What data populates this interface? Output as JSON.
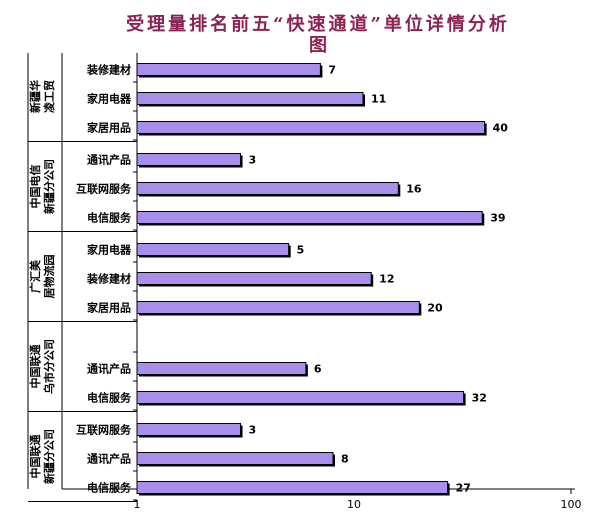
{
  "chart_data": {
    "type": "bar",
    "orientation": "horizontal",
    "title_line1": "受理量排名前五“快速通道”单位详情分析",
    "title_line2": "图",
    "x_scale": "log",
    "xlim": [
      1,
      100
    ],
    "x_ticks": [
      "1",
      "10",
      "100"
    ],
    "grid": false,
    "legend": "none",
    "bar_color": "#A98FEB",
    "groups": [
      {
        "name_lines": [
          "新疆华",
          "凌工贸"
        ],
        "items": [
          {
            "label": "装修建材",
            "value": 7
          },
          {
            "label": "家用电器",
            "value": 11
          },
          {
            "label": "家居用品",
            "value": 40
          }
        ]
      },
      {
        "name_lines": [
          "中国电信",
          "新疆分公司"
        ],
        "items": [
          {
            "label": "通讯产品",
            "value": 3
          },
          {
            "label": "互联网服务",
            "value": 16
          },
          {
            "label": "电信服务",
            "value": 39
          }
        ]
      },
      {
        "name_lines": [
          "广汇美",
          "居物流园"
        ],
        "items": [
          {
            "label": "家用电器",
            "value": 5
          },
          {
            "label": "装修建材",
            "value": 12
          },
          {
            "label": "家居用品",
            "value": 20
          }
        ]
      },
      {
        "name_lines": [
          "中国联通",
          "乌市分公司"
        ],
        "items": [
          {
            "label": "",
            "value": null
          },
          {
            "label": "通讯产品",
            "value": 6
          },
          {
            "label": "电信服务",
            "value": 32
          }
        ]
      },
      {
        "name_lines": [
          "中国联通",
          "新疆分公司"
        ],
        "items": [
          {
            "label": "互联网服务",
            "value": 3
          },
          {
            "label": "通讯产品",
            "value": 8
          },
          {
            "label": "电信服务",
            "value": 27
          }
        ]
      }
    ]
  }
}
